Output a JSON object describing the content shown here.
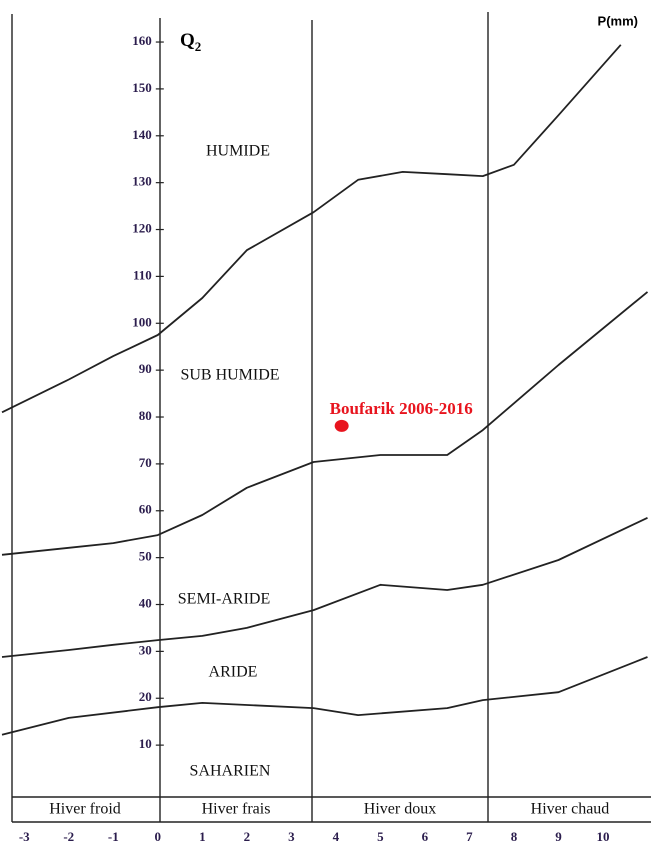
{
  "chart_data": {
    "type": "climagram",
    "y_label": {
      "main": "Q",
      "sub": "2"
    },
    "corner_label": "P(mm)",
    "ylim": [
      0,
      165
    ],
    "yticks": [
      10,
      20,
      30,
      40,
      50,
      60,
      70,
      80,
      90,
      100,
      110,
      120,
      130,
      140,
      150,
      160
    ],
    "xlim": [
      -3.5,
      11
    ],
    "xticks": [
      -3,
      -2,
      -1,
      0,
      1,
      2,
      3,
      4,
      5,
      6,
      7,
      8,
      9,
      10
    ],
    "curve_color": "#222222",
    "curves": [
      {
        "x": [
          -3.5,
          -2,
          -1,
          0,
          1,
          2,
          3.5,
          4.5,
          5.5,
          6.5,
          7.3,
          8,
          9,
          10.4
        ],
        "values": [
          81,
          88,
          93,
          97.5,
          105.4,
          115.6,
          123.7,
          130.6,
          132.3,
          131.8,
          131.4,
          133.8,
          144.4,
          159.4
        ]
      },
      {
        "x": [
          -3.5,
          -2,
          -1,
          0,
          1,
          2,
          3.5,
          5,
          6.5,
          7.3,
          9,
          11
        ],
        "values": [
          50.6,
          52.1,
          53.1,
          54.8,
          59.1,
          64.9,
          70.4,
          71.9,
          71.9,
          77.2,
          91.1,
          106.7
        ]
      },
      {
        "x": [
          -3.5,
          -2,
          -1,
          0,
          1,
          2,
          3.5,
          5,
          6.5,
          7.3,
          9,
          11
        ],
        "values": [
          28.8,
          30.3,
          31.4,
          32.4,
          33.3,
          35,
          38.8,
          44.2,
          43.1,
          44.2,
          49.5,
          58.5
        ]
      },
      {
        "x": [
          -3.5,
          -2,
          0,
          1,
          3.5,
          4.5,
          6.5,
          7.3,
          9,
          11
        ],
        "values": [
          12.2,
          15.8,
          18.1,
          19,
          17.9,
          16.4,
          17.9,
          19.6,
          21.3,
          28.8
        ]
      }
    ],
    "zones": [
      "HUMIDE",
      "SUB HUMIDE",
      "SEMI-ARIDE",
      "ARIDE",
      "SAHARIEN"
    ],
    "winters": [
      "Hiver froid",
      "Hiver frais",
      "Hiver doux",
      "Hiver chaud"
    ],
    "point": {
      "label": "Boufarik 2006-2016",
      "x": 4.13,
      "y": 78.1,
      "color": "#e8141e"
    }
  }
}
